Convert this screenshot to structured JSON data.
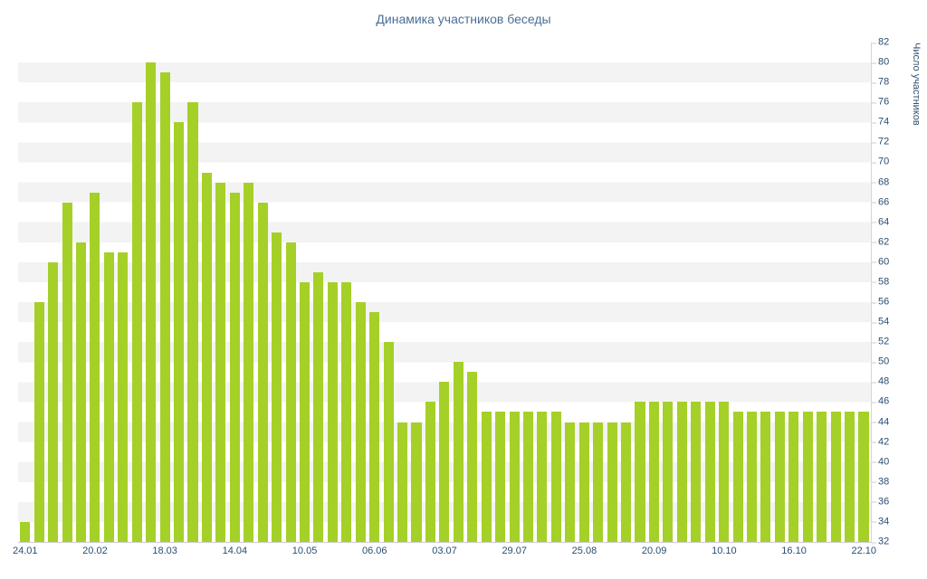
{
  "page": {
    "title": "Динамика участников беседы"
  },
  "chart_data": {
    "type": "bar",
    "title": "Динамика участников беседы",
    "xlabel": "",
    "ylabel": "Число участников",
    "ylim": [
      32,
      82
    ],
    "y_tick_step": 2,
    "y_tick_labels": [
      82,
      80,
      78,
      76,
      74,
      72,
      70,
      68,
      66,
      64,
      62,
      60,
      58,
      56,
      54,
      52,
      50,
      48,
      46,
      44,
      42,
      40,
      38,
      36,
      34,
      32
    ],
    "x_tick_labels": [
      "24.01",
      "20.02",
      "18.03",
      "14.04",
      "10.05",
      "06.06",
      "03.07",
      "29.07",
      "25.08",
      "20.09",
      "10.10",
      "16.10",
      "22.10"
    ],
    "x_label_every": 5,
    "values": [
      34,
      56,
      60,
      66,
      62,
      67,
      61,
      61,
      76,
      80,
      79,
      74,
      76,
      69,
      68,
      67,
      68,
      66,
      63,
      62,
      58,
      59,
      58,
      58,
      56,
      55,
      52,
      44,
      44,
      46,
      48,
      50,
      49,
      45,
      45,
      45,
      45,
      45,
      45,
      44,
      44,
      44,
      44,
      44,
      46,
      46,
      46,
      46,
      46,
      46,
      46,
      45,
      45,
      45,
      45,
      45,
      45,
      45,
      45,
      45,
      45
    ],
    "bar_color": "#a5d028",
    "band_color": "#f3f3f3",
    "title_color": "#4a6e96",
    "tick_label_color": "#2a4e71",
    "grid": "horizontal-bands",
    "legend": "none"
  }
}
